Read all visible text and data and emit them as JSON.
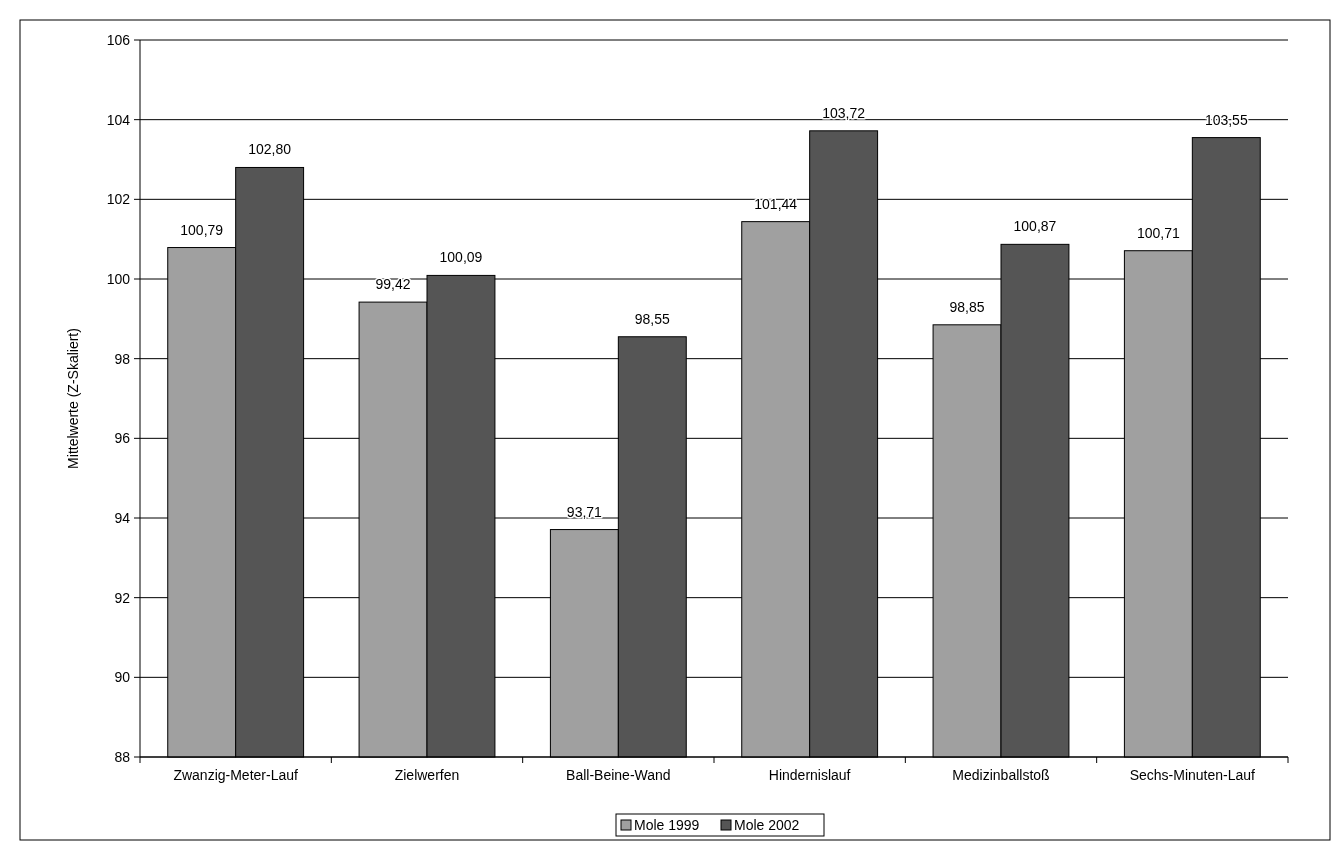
{
  "chart_data": {
    "type": "bar",
    "ylabel": "Mittelwerte (Z-Skaliert)",
    "categories": [
      "Zwanzig-Meter-Lauf",
      "Zielwerfen",
      "Ball-Beine-Wand",
      "Hindernislauf",
      "Medizinballstoß",
      "Sechs-Minuten-Lauf"
    ],
    "series": [
      {
        "name": "Mole 1999",
        "color": "#a0a0a0",
        "values": [
          100.79,
          99.42,
          93.71,
          101.44,
          98.85,
          100.71
        ],
        "value_labels": [
          "100,79",
          "99,42",
          "93,71",
          "101,44",
          "98,85",
          "100,71"
        ]
      },
      {
        "name": "Mole 2002",
        "color": "#555555",
        "values": [
          102.8,
          100.09,
          98.55,
          103.72,
          100.87,
          103.55
        ],
        "value_labels": [
          "102,80",
          "100,09",
          "98,55",
          "103,72",
          "100,87",
          "103,55"
        ]
      }
    ],
    "ylim": [
      88,
      106
    ],
    "yticks": [
      88,
      90,
      92,
      94,
      96,
      98,
      100,
      102,
      104,
      106
    ],
    "grid": "y",
    "legend": "bottom"
  }
}
